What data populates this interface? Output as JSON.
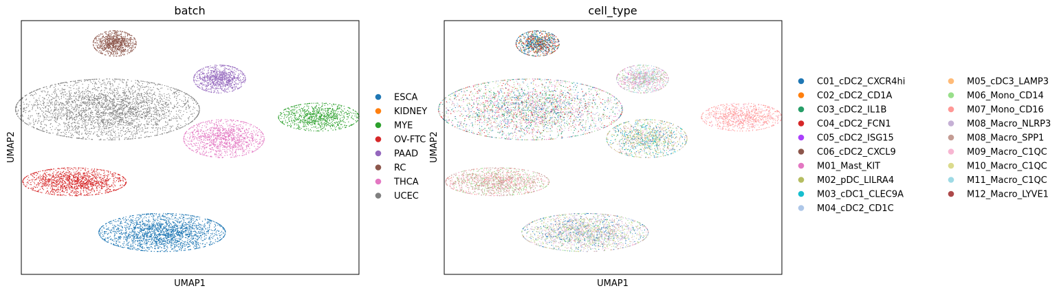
{
  "chart_data": [
    {
      "type": "scatter",
      "title": "batch",
      "xlabel": "UMAP1",
      "ylabel": "UMAP2",
      "ticks": "none",
      "grid": false,
      "legend_position": "right",
      "legend": [
        {
          "label": "ESCA",
          "color": "#1f77b4"
        },
        {
          "label": "KIDNEY",
          "color": "#ff7f0e"
        },
        {
          "label": "MYE",
          "color": "#2ca02c"
        },
        {
          "label": "OV-FTC",
          "color": "#d62728"
        },
        {
          "label": "PAAD",
          "color": "#9467bd"
        },
        {
          "label": "RC",
          "color": "#8c564b"
        },
        {
          "label": "THCA",
          "color": "#e377c2"
        },
        {
          "label": "UCEC",
          "color": "#7f7f7f"
        }
      ],
      "clusters": [
        {
          "group": "RC",
          "center": [
            -3.0,
            8.4
          ],
          "spread": [
            0.75,
            0.5
          ],
          "n": 900
        },
        {
          "group": "PAAD",
          "center": [
            4.3,
            5.6
          ],
          "spread": [
            0.9,
            0.55
          ],
          "n": 900
        },
        {
          "group": "UCEC",
          "center": [
            -3.5,
            3.2
          ],
          "spread": [
            3.2,
            1.2
          ],
          "n": 3200
        },
        {
          "group": "MYE",
          "center": [
            11.2,
            2.6
          ],
          "spread": [
            1.4,
            0.55
          ],
          "n": 900
        },
        {
          "group": "THCA",
          "center": [
            4.6,
            0.9
          ],
          "spread": [
            1.4,
            0.75
          ],
          "n": 1200
        },
        {
          "group": "OV-FTC",
          "center": [
            -5.8,
            -2.5
          ],
          "spread": [
            1.8,
            0.55
          ],
          "n": 1400
        },
        {
          "group": "ESCA",
          "center": [
            0.3,
            -6.5
          ],
          "spread": [
            2.2,
            0.75
          ],
          "n": 2200
        }
      ]
    },
    {
      "type": "scatter",
      "title": "cell_type",
      "xlabel": "UMAP1",
      "ylabel": "UMAP2",
      "ticks": "none",
      "grid": false,
      "legend_position": "right",
      "legend": [
        {
          "label": "C01_cDC2_CXCR4hi",
          "color": "#1f77b4"
        },
        {
          "label": "C02_cDC2_CD1A",
          "color": "#ff7f0e"
        },
        {
          "label": "C03_cDC2_IL1B",
          "color": "#279e68"
        },
        {
          "label": "C04_cDC2_FCN1",
          "color": "#d62728"
        },
        {
          "label": "C05_cDC2_ISG15",
          "color": "#aa40fc"
        },
        {
          "label": "C06_cDC2_CXCL9",
          "color": "#8c564b"
        },
        {
          "label": "M01_Mast_KIT",
          "color": "#e377c2"
        },
        {
          "label": "M02_pDC_LILRA4",
          "color": "#b5bd61"
        },
        {
          "label": "M03_cDC1_CLEC9A",
          "color": "#17becf"
        },
        {
          "label": "M04_cDC2_CD1C",
          "color": "#aec7e8"
        },
        {
          "label": "M05_cDC3_LAMP3",
          "color": "#ffbb78"
        },
        {
          "label": "M06_Mono_CD14",
          "color": "#98df8a"
        },
        {
          "label": "M07_Mono_CD16",
          "color": "#ff9896"
        },
        {
          "label": "M08_Macro_NLRP3",
          "color": "#c5b0d5"
        },
        {
          "label": "M08_Macro_SPP1",
          "color": "#c49c94"
        },
        {
          "label": "M09_Macro_C1QC",
          "color": "#f7b6d2"
        },
        {
          "label": "M10_Macro_C1QC",
          "color": "#dbdb8d"
        },
        {
          "label": "M11_Macro_C1QC",
          "color": "#9edae5"
        },
        {
          "label": "M12_Macro_LYVE1",
          "color": "#ad494a"
        }
      ],
      "clusters": [
        {
          "center": [
            -3.0,
            8.4
          ],
          "spread": [
            0.75,
            0.5
          ],
          "n": 900,
          "mix": [
            "C01_cDC2_CXCR4hi",
            "C01_cDC2_CXCR4hi",
            "C01_cDC2_CXCR4hi",
            "C06_cDC2_CXCL9",
            "C02_cDC2_CD1A",
            "C03_cDC2_IL1B",
            "C04_cDC2_FCN1"
          ]
        },
        {
          "center": [
            4.3,
            5.6
          ],
          "spread": [
            0.9,
            0.55
          ],
          "n": 900,
          "mix": [
            "M06_Mono_CD14",
            "M09_Macro_C1QC",
            "M08_Macro_SPP1",
            "M04_cDC2_CD1C",
            "M01_Mast_KIT",
            "M11_Macro_C1QC"
          ]
        },
        {
          "center": [
            -3.5,
            3.2
          ],
          "spread": [
            3.2,
            1.2
          ],
          "n": 3200,
          "mix": [
            "M06_Mono_CD14",
            "M09_Macro_C1QC",
            "M08_Macro_SPP1",
            "M01_Mast_KIT",
            "C03_cDC2_IL1B",
            "M04_cDC2_CD1C",
            "M11_Macro_C1QC",
            "C01_cDC2_CXCR4hi",
            "M10_Macro_C1QC",
            "C04_cDC2_FCN1"
          ]
        },
        {
          "center": [
            11.2,
            2.6
          ],
          "spread": [
            1.4,
            0.55
          ],
          "n": 900,
          "mix": [
            "M07_Mono_CD16",
            "M07_Mono_CD16",
            "M07_Mono_CD16",
            "M09_Macro_C1QC"
          ]
        },
        {
          "center": [
            4.6,
            0.9
          ],
          "spread": [
            1.4,
            0.75
          ],
          "n": 1200,
          "mix": [
            "M10_Macro_C1QC",
            "M09_Macro_C1QC",
            "M08_Macro_SPP1",
            "C01_cDC2_CXCR4hi",
            "M03_cDC1_CLEC9A",
            "M02_pDC_LILRA4",
            "M06_Mono_CD14"
          ]
        },
        {
          "center": [
            -5.8,
            -2.5
          ],
          "spread": [
            1.8,
            0.55
          ],
          "n": 1400,
          "mix": [
            "M08_Macro_SPP1",
            "M09_Macro_C1QC",
            "M08_Macro_SPP1",
            "M06_Mono_CD14",
            "M07_Mono_CD16"
          ]
        },
        {
          "center": [
            0.3,
            -6.5
          ],
          "spread": [
            2.2,
            0.75
          ],
          "n": 2200,
          "mix": [
            "M10_Macro_C1QC",
            "M06_Mono_CD14",
            "M09_Macro_C1QC",
            "M04_cDC2_CD1C",
            "C01_cDC2_CXCR4hi",
            "M08_Macro_SPP1",
            "M08_Macro_NLRP3"
          ]
        }
      ]
    }
  ],
  "xlim": [
    -9.5,
    14.0
  ],
  "ylim": [
    -9.8,
    10.2
  ]
}
